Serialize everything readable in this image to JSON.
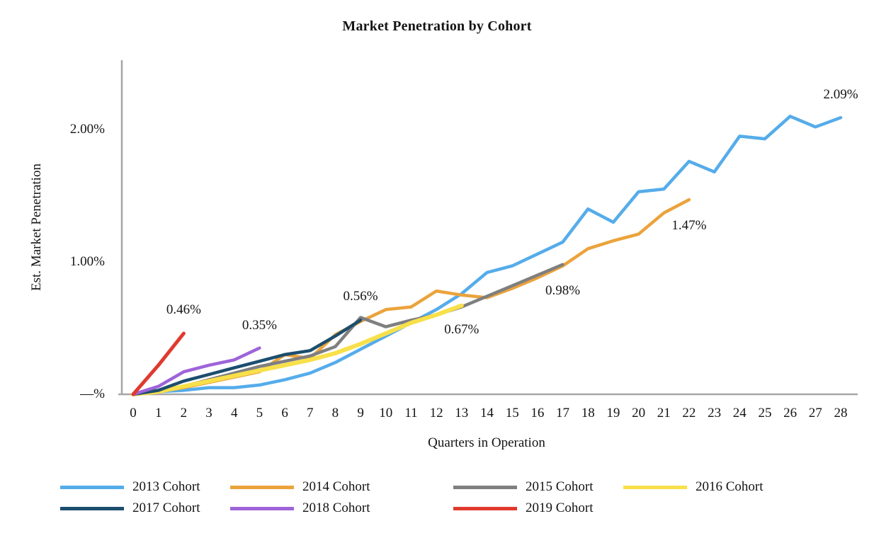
{
  "title": "Market Penetration by Cohort",
  "y_axis": {
    "label": "Est. Market Penetration",
    "ticks": [
      {
        "label": "2.00%",
        "value": 2.0
      },
      {
        "label": "1.00%",
        "value": 1.0
      },
      {
        "label": "—%",
        "value": 0
      }
    ]
  },
  "x_axis": {
    "label": "Quarters in Operation",
    "ticks": [
      "0",
      "1",
      "2",
      "3",
      "4",
      "5",
      "6",
      "7",
      "8",
      "9",
      "10",
      "11",
      "12",
      "13",
      "14",
      "15",
      "16",
      "17",
      "18",
      "19",
      "20",
      "21",
      "22",
      "23",
      "24",
      "25",
      "26",
      "27",
      "28"
    ]
  },
  "colors": {
    "axis": "#A6A6A6",
    "text": "#141414"
  },
  "chart_data": {
    "type": "line",
    "title": "Market Penetration by Cohort",
    "xlabel": "Quarters in Operation",
    "ylabel": "Est. Market Penetration",
    "xlim": [
      0,
      28
    ],
    "ylim": [
      0,
      2.5
    ],
    "grid": false,
    "legend_position": "bottom",
    "x_unit": "quarter",
    "y_unit": "percent",
    "series": [
      {
        "name": "2013 Cohort",
        "color": "#55ACEA",
        "width": 4.5,
        "end_label": "2.09%",
        "values": [
          0,
          0.02,
          0.03,
          0.05,
          0.05,
          0.07,
          0.11,
          0.16,
          0.24,
          0.34,
          0.44,
          0.54,
          0.64,
          0.76,
          0.92,
          0.97,
          1.06,
          1.15,
          1.4,
          1.3,
          1.53,
          1.55,
          1.76,
          1.68,
          1.95,
          1.93,
          2.1,
          2.02,
          2.09
        ]
      },
      {
        "name": "2014 Cohort",
        "color": "#EBA33C",
        "width": 4.5,
        "end_label": "1.47%",
        "values": [
          0,
          0.02,
          0.05,
          0.09,
          0.13,
          0.17,
          0.3,
          0.27,
          0.45,
          0.55,
          0.64,
          0.66,
          0.78,
          0.75,
          0.73,
          0.8,
          0.88,
          0.97,
          1.1,
          1.16,
          1.21,
          1.37,
          1.47
        ]
      },
      {
        "name": "2015 Cohort",
        "color": "#7F7F7F",
        "width": 4.5,
        "end_label": "0.98%",
        "values": [
          0,
          0.02,
          0.06,
          0.11,
          0.16,
          0.21,
          0.25,
          0.29,
          0.36,
          0.58,
          0.51,
          0.56,
          0.6,
          0.66,
          0.74,
          0.82,
          0.9,
          0.98
        ]
      },
      {
        "name": "2016 Cohort",
        "color": "#F8E04A",
        "width": 6,
        "end_label": "0.67%",
        "values": [
          0,
          0.02,
          0.06,
          0.1,
          0.14,
          0.18,
          0.22,
          0.26,
          0.31,
          0.38,
          0.46,
          0.54,
          0.6,
          0.67
        ]
      },
      {
        "name": "2017 Cohort",
        "color": "#1C4E6E",
        "width": 4.5,
        "end_label": "0.56%",
        "values": [
          0,
          0.03,
          0.1,
          0.15,
          0.2,
          0.25,
          0.3,
          0.33,
          0.44,
          0.56
        ]
      },
      {
        "name": "2018 Cohort",
        "color": "#9E64D9",
        "width": 4.5,
        "end_label": "0.35%",
        "values": [
          0,
          0.06,
          0.17,
          0.22,
          0.26,
          0.35
        ]
      },
      {
        "name": "2019 Cohort",
        "color": "#E03A2E",
        "width": 5,
        "end_label": "0.46%",
        "values": [
          0,
          0.22,
          0.46
        ]
      }
    ],
    "annotations": [
      {
        "text": "0.46%",
        "series": "2019 Cohort",
        "q": 2,
        "value": 0.46,
        "dy": -33
      },
      {
        "text": "0.35%",
        "series": "2018 Cohort",
        "q": 5,
        "value": 0.35,
        "dy": -32
      },
      {
        "text": "0.56%",
        "series": "2017 Cohort",
        "q": 9,
        "value": 0.56,
        "dy": -33
      },
      {
        "text": "0.67%",
        "series": "2016 Cohort",
        "q": 13,
        "value": 0.67,
        "dy": 34
      },
      {
        "text": "0.98%",
        "series": "2015 Cohort",
        "q": 17,
        "value": 0.98,
        "dy": 37
      },
      {
        "text": "1.47%",
        "series": "2014 Cohort",
        "q": 22,
        "value": 1.47,
        "dy": 37
      },
      {
        "text": "2.09%",
        "series": "2013 Cohort",
        "q": 28,
        "value": 2.09,
        "dy": -32
      }
    ]
  },
  "legend": {
    "rows": [
      [
        "2013 Cohort",
        "2014 Cohort",
        "2015 Cohort",
        "2016 Cohort"
      ],
      [
        "2017 Cohort",
        "2018 Cohort",
        "2019 Cohort"
      ]
    ]
  }
}
